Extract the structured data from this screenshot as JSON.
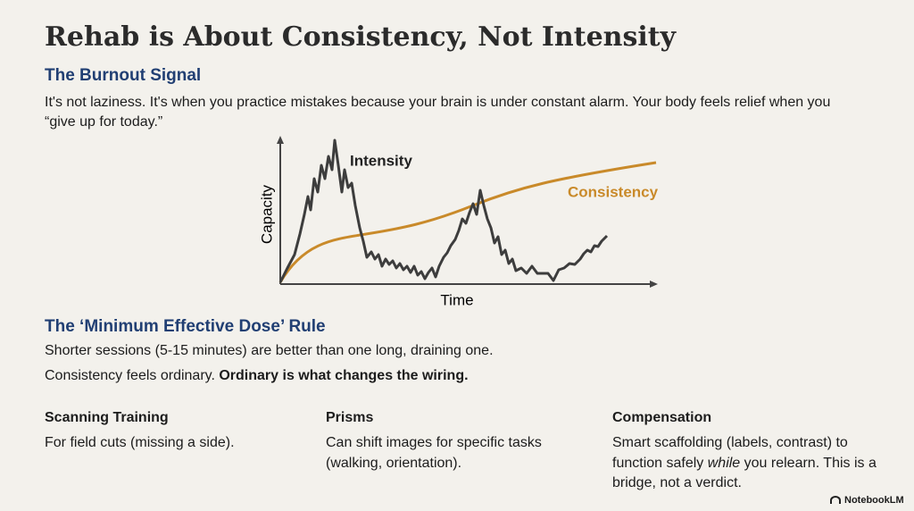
{
  "title": "Rehab is About Consistency, Not Intensity",
  "section1": {
    "heading": "The Burnout Signal",
    "body": "It's not laziness. It's when you practice mistakes because your brain is under constant alarm. Your body feels relief when you “give up for today.”"
  },
  "chart": {
    "y_label": "Capacity",
    "x_label": "Time",
    "line1": "Intensity",
    "line2": "Consistency"
  },
  "section2": {
    "heading": "The ‘Minimum Effective Dose’ Rule",
    "line1": "Shorter sessions (5-15 minutes) are better than one long, draining one.",
    "line2_plain": "Consistency feels ordinary.",
    "line2_bold": "Ordinary is what changes the wiring."
  },
  "columns": [
    {
      "heading": "Scanning Training",
      "body": "For field cuts (missing a side)."
    },
    {
      "heading": "Prisms",
      "body": "Can shift images for specific tasks (walking, orientation)."
    },
    {
      "heading": "Compensation",
      "body_before": "Smart scaffolding (labels, contrast) to function safely",
      "body_italic": "while",
      "body_after": "you relearn. This is a bridge, not a verdict."
    }
  ],
  "footer": "NotebookLM"
}
